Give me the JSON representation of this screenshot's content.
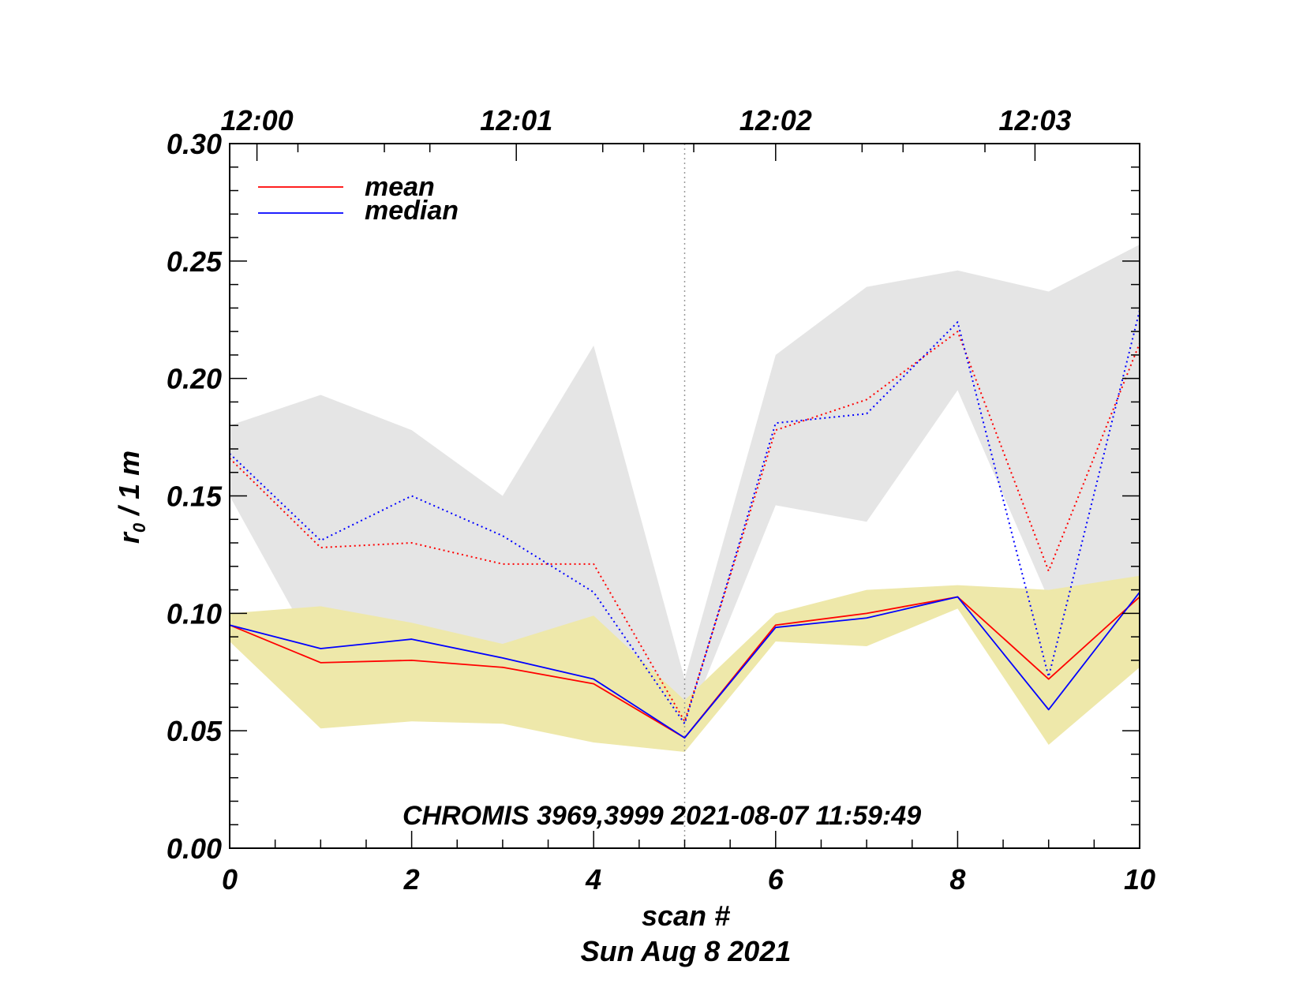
{
  "chart_data": {
    "type": "line",
    "title": "",
    "xlabel": "scan #",
    "date_label": "Sun Aug  8 2021",
    "ylabel_main": "r",
    "ylabel_sub": "0",
    "ylabel_rest": " / 1 m",
    "annotation": "CHROMIS 3969,3999 2021-08-07 11:59:49",
    "xlim": [
      0,
      10
    ],
    "ylim": [
      0,
      0.3
    ],
    "x_ticks": [
      0,
      2,
      4,
      6,
      8,
      10
    ],
    "x_tick_labels": [
      "0",
      "2",
      "4",
      "6",
      "8",
      "10"
    ],
    "y_ticks": [
      0,
      0.05,
      0.1,
      0.15,
      0.2,
      0.25,
      0.3
    ],
    "y_tick_labels": [
      "0.00",
      "0.05",
      "0.10",
      "0.15",
      "0.20",
      "0.25",
      "0.30"
    ],
    "top_axis": {
      "positions": [
        0.3,
        3.15,
        6.0,
        8.85
      ],
      "labels": [
        "12:00",
        "12:01",
        "12:02",
        "12:03"
      ]
    },
    "vertical_marker_x": 5,
    "legend": {
      "position": "top-left",
      "entries": [
        {
          "name": "mean",
          "color": "#ff0000"
        },
        {
          "name": "median",
          "color": "#0000ff"
        }
      ]
    },
    "x": [
      0,
      1,
      2,
      3,
      4,
      5,
      6,
      7,
      8,
      9,
      10
    ],
    "bands": [
      {
        "name": "range-upper-gray",
        "color": "#e5e5e5",
        "upper": [
          0.18,
          0.193,
          0.178,
          0.15,
          0.214,
          0.072,
          0.21,
          0.239,
          0.246,
          0.237,
          0.257
        ],
        "lower": [
          0.15,
          0.08,
          0.09,
          0.087,
          0.085,
          0.05,
          0.146,
          0.139,
          0.195,
          0.106,
          0.106
        ]
      },
      {
        "name": "range-lower-khaki",
        "color": "#eee8aa",
        "upper": [
          0.1,
          0.103,
          0.096,
          0.087,
          0.099,
          0.063,
          0.1,
          0.11,
          0.112,
          0.11,
          0.116
        ],
        "lower": [
          0.088,
          0.051,
          0.054,
          0.053,
          0.045,
          0.041,
          0.088,
          0.086,
          0.102,
          0.044,
          0.077
        ]
      }
    ],
    "series": [
      {
        "name": "mean",
        "group": "upper",
        "color": "#ff0000",
        "style": "dotted",
        "values": [
          0.166,
          0.128,
          0.13,
          0.121,
          0.121,
          0.054,
          0.178,
          0.191,
          0.22,
          0.118,
          0.215
        ]
      },
      {
        "name": "median",
        "group": "upper",
        "color": "#0000ff",
        "style": "dotted",
        "values": [
          0.168,
          0.131,
          0.15,
          0.133,
          0.109,
          0.053,
          0.181,
          0.185,
          0.224,
          0.073,
          0.229
        ]
      },
      {
        "name": "mean",
        "group": "lower",
        "color": "#ff0000",
        "style": "solid",
        "values": [
          0.095,
          0.079,
          0.08,
          0.077,
          0.07,
          0.047,
          0.095,
          0.1,
          0.107,
          0.072,
          0.107
        ]
      },
      {
        "name": "median",
        "group": "lower",
        "color": "#0000ff",
        "style": "solid",
        "values": [
          0.095,
          0.085,
          0.089,
          0.081,
          0.072,
          0.047,
          0.094,
          0.098,
          0.107,
          0.059,
          0.109
        ]
      }
    ]
  }
}
